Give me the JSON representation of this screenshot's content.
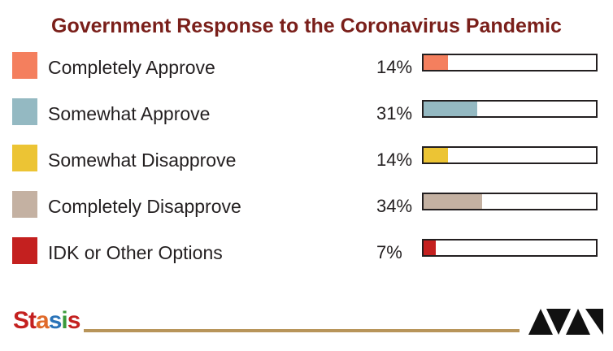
{
  "chart_data": {
    "type": "bar",
    "orientation": "horizontal",
    "title": "Government Response to the Coronavirus Pandemic",
    "categories": [
      "Completely Approve",
      "Somewhat Approve",
      "Somewhat Disapprove",
      "Completely Disapprove",
      "IDK or Other Options"
    ],
    "values": [
      14,
      31,
      14,
      34,
      7
    ],
    "value_labels": [
      "14%",
      "31%",
      "14%",
      "34%",
      "7%"
    ],
    "colors": [
      "#f47f5e",
      "#94b9c2",
      "#ecc434",
      "#c4b1a2",
      "#c4201f"
    ],
    "xlim": [
      0,
      100
    ],
    "legend": "left"
  },
  "branding": {
    "left_logo": "Stasis",
    "right_logo_icon": "awa-logo-icon",
    "line_color": "#b8955a"
  }
}
